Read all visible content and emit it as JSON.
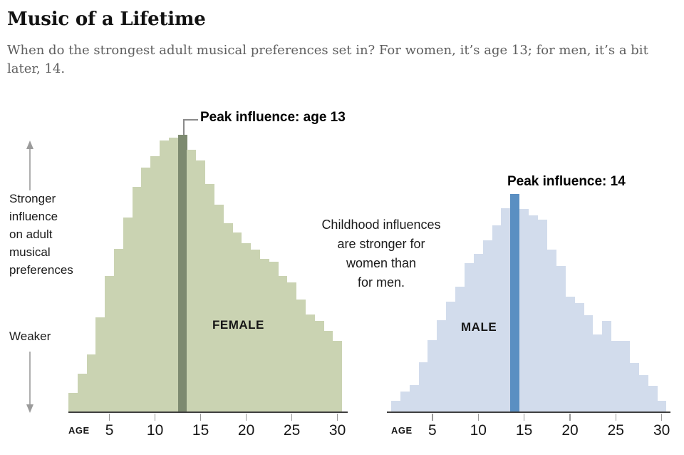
{
  "title": "Music of a Lifetime",
  "subtitle_lines": [
    "When do the strongest adult musical preferences set in? For women, it’s age 13; for men, it’s a bit",
    "later, 14."
  ],
  "left_annotation": {
    "stronger_lines": [
      "Stronger",
      "influence",
      "on adult",
      "musical",
      "preferences"
    ],
    "weaker_label": "Weaker"
  },
  "center_annotation_lines": [
    "Childhood influences",
    "are stronger for",
    "women than",
    "for men."
  ],
  "chart_data": [
    {
      "type": "bar",
      "series_label": "FEMALE",
      "peak_annotation": "Peak influence: age 13",
      "highlight_age": 13,
      "xlabel": "AGE",
      "x_ticks": [
        5,
        10,
        15,
        20,
        25,
        30
      ],
      "ages": [
        1,
        2,
        3,
        4,
        5,
        6,
        7,
        8,
        9,
        10,
        11,
        12,
        13,
        14,
        15,
        16,
        17,
        18,
        19,
        20,
        21,
        22,
        23,
        24,
        25,
        26,
        27,
        28,
        29,
        30
      ],
      "values": [
        6.7,
        13.7,
        20.6,
        34,
        49,
        58.8,
        70.1,
        81.2,
        88.1,
        92.3,
        97.9,
        99,
        100,
        94.6,
        90.7,
        82.2,
        74.7,
        68,
        64.7,
        60.8,
        58.5,
        55.2,
        54.1,
        49,
        46.6,
        40.5,
        35.1,
        32.7,
        29.1,
        25.5
      ],
      "value_scale": "relative influence, female peak = 100",
      "ylim": [
        0,
        100
      ],
      "bar_color": "#cad3b2",
      "highlight_color": "#7d8a70"
    },
    {
      "type": "bar",
      "series_label": "MALE",
      "peak_annotation": "Peak influence: 14",
      "highlight_age": 14,
      "xlabel": "AGE",
      "x_ticks": [
        5,
        10,
        15,
        20,
        25,
        30
      ],
      "ages": [
        1,
        2,
        3,
        4,
        5,
        6,
        7,
        8,
        9,
        10,
        11,
        12,
        13,
        14,
        15,
        16,
        17,
        18,
        19,
        20,
        21,
        22,
        23,
        24,
        25,
        26,
        27,
        28,
        29,
        30
      ],
      "values": [
        3.9,
        7.2,
        9.5,
        17.8,
        25.8,
        33,
        39.7,
        45.1,
        53.6,
        57,
        61.9,
        67.3,
        73.5,
        78.6,
        73.2,
        70.9,
        69.3,
        58.5,
        52.6,
        41.5,
        39.2,
        34.8,
        27.8,
        32.7,
        25.5,
        25.5,
        17.5,
        13.1,
        9.3,
        3.9
      ],
      "value_scale": "relative influence, female peak = 100",
      "ylim": [
        0,
        100
      ],
      "bar_color": "#d2dcec",
      "highlight_color": "#5a8fc2"
    }
  ],
  "colors": {
    "female_bar": "#cad3b2",
    "female_highlight": "#7d8a70",
    "male_bar": "#d2dcec",
    "male_highlight": "#5a8fc2",
    "axis": "#3f3f3f",
    "arrow": "#9b9b9b"
  }
}
